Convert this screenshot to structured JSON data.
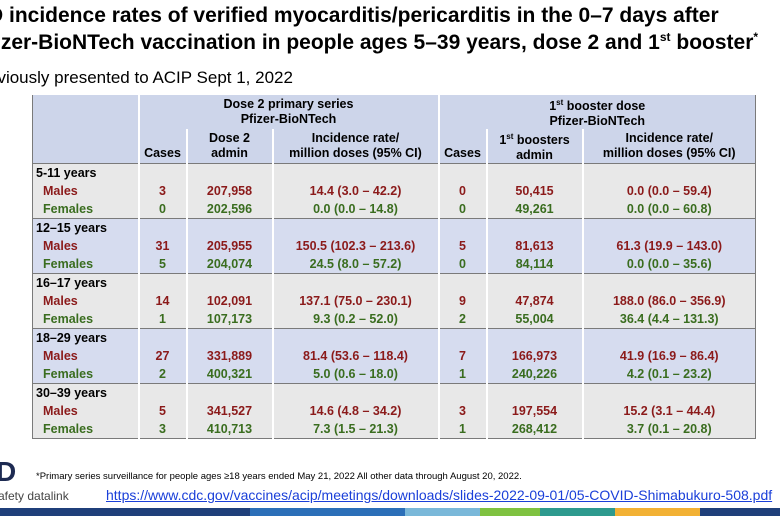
{
  "title_line1": "D incidence rates of verified myocarditis/pericarditis in the 0–7 days after",
  "title_line2": "fizer-BioNTech vaccination in people ages 5–39 years, dose 2 and 1",
  "title_line2_sup": "st",
  "title_line2_end": " booster",
  "title_star": "*",
  "subtitle": "eviously presented to ACIP Sept 1, 2022",
  "headers": {
    "dose2_title": "Dose 2 primary series",
    "dose2_sub": "Pfizer-BioNTech",
    "booster_sup": "st",
    "booster_title": " booster dose",
    "booster_prefix": "1",
    "booster_sub": "Pfizer-BioNTech",
    "cases": "Cases",
    "dose2_admin_l1": "Dose 2",
    "dose2_admin_l2": "admin",
    "incidence_l1": "Incidence rate/",
    "incidence_l2": "million doses (95% CI)",
    "boosters_prefix": "1",
    "boosters_sup": "st",
    "boosters_l1": " boosters",
    "boosters_l2": "admin"
  },
  "groups": [
    {
      "label": "5-11 years",
      "rows": [
        {
          "sex": "Males",
          "cases": "3",
          "admin": "207,958",
          "rate": "14.4 (3.0 – 42.2)",
          "b_cases": "0",
          "b_admin": "50,415",
          "b_rate": "0.0 (0.0 – 59.4)"
        },
        {
          "sex": "Females",
          "cases": "0",
          "admin": "202,596",
          "rate": "0.0 (0.0 – 14.8)",
          "b_cases": "0",
          "b_admin": "49,261",
          "b_rate": "0.0 (0.0 – 60.8)"
        }
      ]
    },
    {
      "label": "12–15 years",
      "rows": [
        {
          "sex": "Males",
          "cases": "31",
          "admin": "205,955",
          "rate": "150.5 (102.3 – 213.6)",
          "b_cases": "5",
          "b_admin": "81,613",
          "b_rate": "61.3 (19.9 – 143.0)"
        },
        {
          "sex": "Females",
          "cases": "5",
          "admin": "204,074",
          "rate": "24.5 (8.0 – 57.2)",
          "b_cases": "0",
          "b_admin": "84,114",
          "b_rate": "0.0 (0.0 – 35.6)"
        }
      ]
    },
    {
      "label": "16–17 years",
      "rows": [
        {
          "sex": "Males",
          "cases": "14",
          "admin": "102,091",
          "rate": "137.1 (75.0 – 230.1)",
          "b_cases": "9",
          "b_admin": "47,874",
          "b_rate": "188.0 (86.0 – 356.9)"
        },
        {
          "sex": "Females",
          "cases": "1",
          "admin": "107,173",
          "rate": "9.3 (0.2 – 52.0)",
          "b_cases": "2",
          "b_admin": "55,004",
          "b_rate": "36.4 (4.4 – 131.3)"
        }
      ]
    },
    {
      "label": "18–29 years",
      "rows": [
        {
          "sex": "Males",
          "cases": "27",
          "admin": "331,889",
          "rate": "81.4 (53.6 – 118.4)",
          "b_cases": "7",
          "b_admin": "166,973",
          "b_rate": "41.9 (16.9 – 86.4)"
        },
        {
          "sex": "Females",
          "cases": "2",
          "admin": "400,321",
          "rate": "5.0 (0.6 – 18.0)",
          "b_cases": "1",
          "b_admin": "240,226",
          "b_rate": "4.2 (0.1 – 23.2)"
        }
      ]
    },
    {
      "label": "30–39 years",
      "rows": [
        {
          "sex": "Males",
          "cases": "5",
          "admin": "341,527",
          "rate": "14.6 (4.8 – 34.2)",
          "b_cases": "3",
          "b_admin": "197,554",
          "b_rate": "15.2 (3.1 – 44.4)"
        },
        {
          "sex": "Females",
          "cases": "3",
          "admin": "410,713",
          "rate": "7.3 (1.5 – 21.3)",
          "b_cases": "1",
          "b_admin": "268,412",
          "b_rate": "3.7 (0.1 – 20.8)"
        }
      ]
    }
  ],
  "footnote": "*Primary series surveillance for people ages ≥18 years ended May 21, 2022 All other data through August 20, 2022.",
  "link": "https://www.cdc.gov/vaccines/acip/meetings/downloads/slides-2022-09-01/05-COVID-Shimabukuro-508.pdf",
  "logo_mark": "D",
  "logo_text": "afety datalink",
  "colors": {
    "header_bg": "#cdd5ea",
    "grey_band": "#e8e8e8",
    "blue_band": "#d6dcef",
    "male": "#8b1a1a",
    "female": "#3a6d1f",
    "link": "#1a3fd9"
  }
}
